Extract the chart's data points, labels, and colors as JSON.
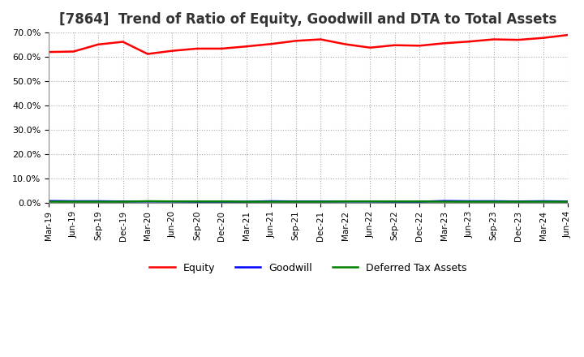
{
  "title": "[7864]  Trend of Ratio of Equity, Goodwill and DTA to Total Assets",
  "x_labels": [
    "Mar-19",
    "Jun-19",
    "Sep-19",
    "Dec-19",
    "Mar-20",
    "Jun-20",
    "Sep-20",
    "Dec-20",
    "Mar-21",
    "Jun-21",
    "Sep-21",
    "Dec-21",
    "Mar-22",
    "Jun-22",
    "Sep-22",
    "Dec-22",
    "Mar-23",
    "Jun-23",
    "Sep-23",
    "Dec-23",
    "Mar-24",
    "Jun-24"
  ],
  "equity": [
    0.62,
    0.622,
    0.651,
    0.662,
    0.612,
    0.625,
    0.634,
    0.634,
    0.643,
    0.653,
    0.666,
    0.672,
    0.652,
    0.638,
    0.648,
    0.646,
    0.656,
    0.663,
    0.672,
    0.67,
    0.678,
    0.69
  ],
  "goodwill": [
    0.008,
    0.007,
    0.007,
    0.006,
    0.006,
    0.006,
    0.005,
    0.005,
    0.005,
    0.007,
    0.006,
    0.006,
    0.006,
    0.006,
    0.005,
    0.005,
    0.008,
    0.007,
    0.007,
    0.006,
    0.007,
    0.006
  ],
  "dta": [
    0.005,
    0.005,
    0.005,
    0.005,
    0.007,
    0.006,
    0.006,
    0.006,
    0.005,
    0.005,
    0.005,
    0.005,
    0.006,
    0.006,
    0.006,
    0.006,
    0.005,
    0.005,
    0.005,
    0.005,
    0.005,
    0.005
  ],
  "equity_color": "#FF0000",
  "goodwill_color": "#0000FF",
  "dta_color": "#008000",
  "ylim": [
    0.0,
    0.7
  ],
  "yticks": [
    0.0,
    0.1,
    0.2,
    0.3,
    0.4,
    0.5,
    0.6,
    0.7
  ],
  "background_color": "#FFFFFF",
  "grid_color": "#AAAAAA",
  "title_fontsize": 12,
  "legend_labels": [
    "Equity",
    "Goodwill",
    "Deferred Tax Assets"
  ]
}
